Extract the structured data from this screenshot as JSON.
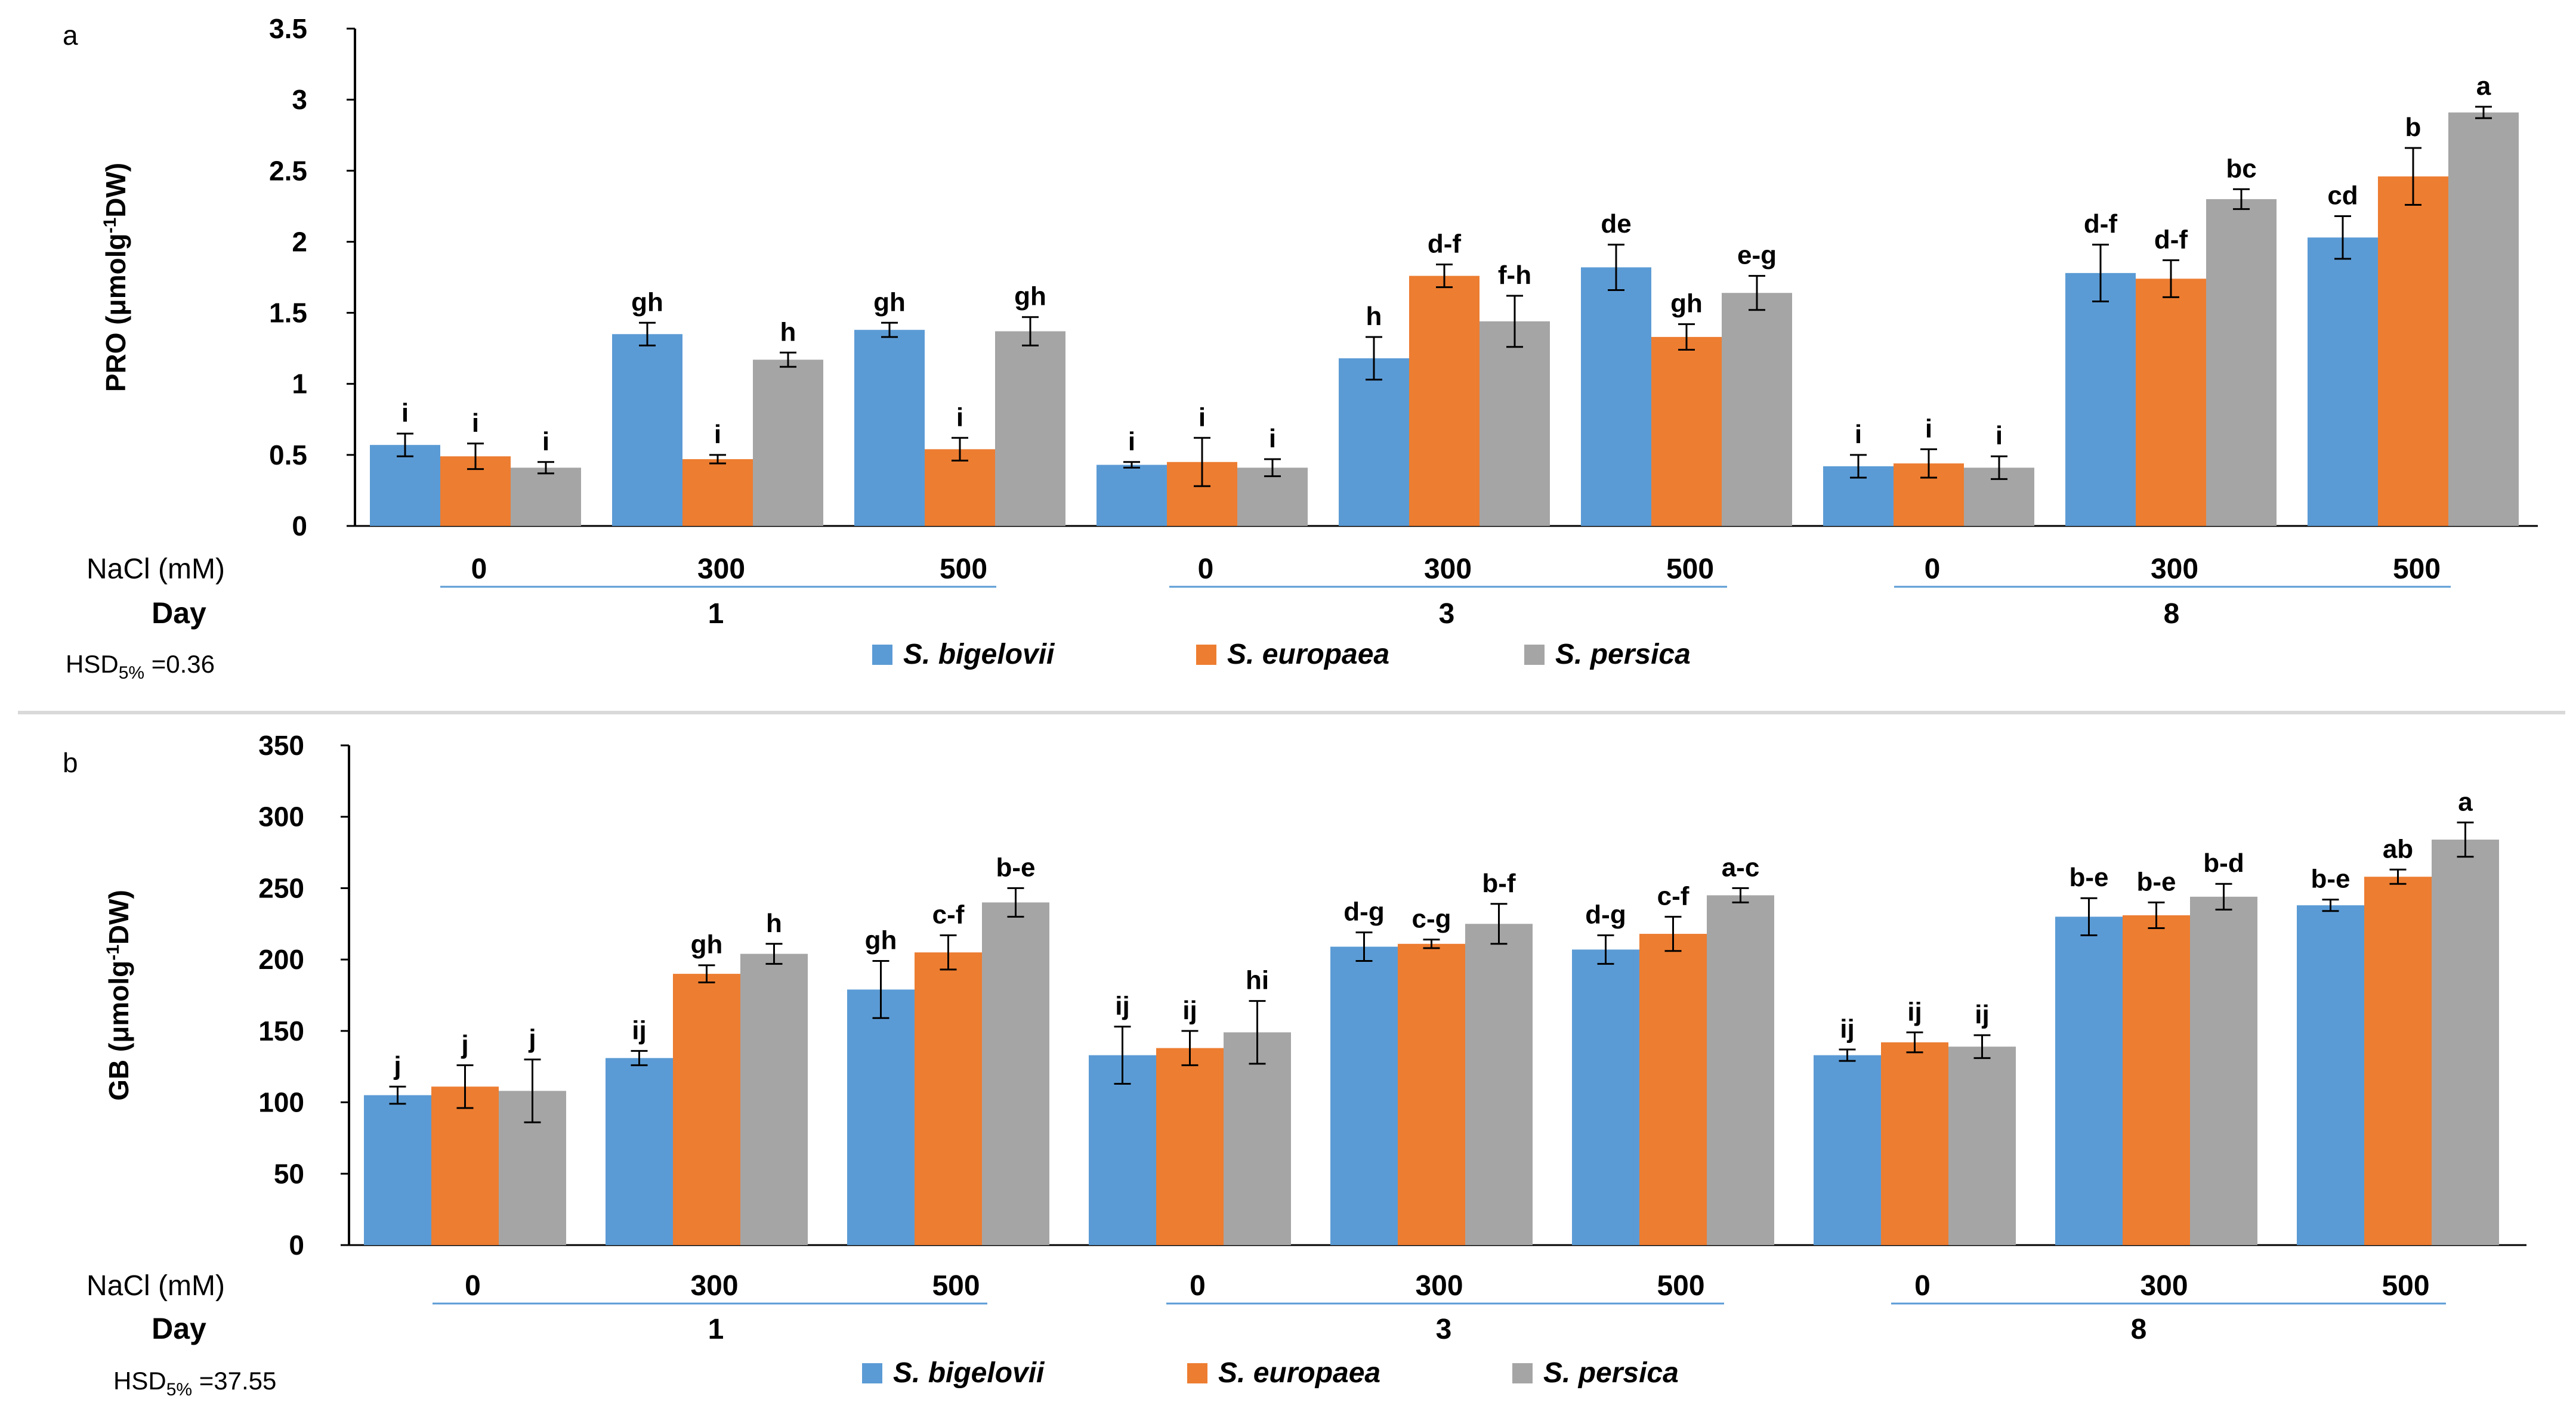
{
  "colors": {
    "s_bigelovii": "#5B9BD5",
    "s_europaea": "#ED7D31",
    "s_persica": "#A5A5A5",
    "group_underline": "#5B9BD5",
    "separator": "#D9D9D9"
  },
  "chart_data": [
    {
      "panel": "a",
      "type": "bar",
      "ylabel_main": "PRO (μmolg",
      "ylabel_sup": "-1",
      "ylabel_end": "DW)",
      "ylim": [
        0,
        3.5
      ],
      "yticks": [
        "0",
        "0.5",
        "1",
        "1.5",
        "2",
        "2.5",
        "3",
        "3.5"
      ],
      "row_label_nacl": "NaCl (mM)",
      "row_label_day": "Day",
      "nacl": [
        "0",
        "300",
        "500",
        "0",
        "300",
        "500",
        "0",
        "300",
        "500"
      ],
      "days": [
        "1",
        "3",
        "8"
      ],
      "hsd_prefix": "HSD",
      "hsd_sub": "5%",
      "hsd_value": " =0.36",
      "legend": [
        "S. bigelovii",
        "S. europaea",
        "S. persica"
      ],
      "series": [
        {
          "name": "S. bigelovii",
          "values": [
            0.57,
            1.35,
            1.38,
            0.43,
            1.18,
            1.82,
            0.42,
            1.78,
            2.03
          ],
          "errors": [
            0.08,
            0.08,
            0.05,
            0.02,
            0.15,
            0.16,
            0.08,
            0.2,
            0.15
          ],
          "labels": [
            "i",
            "gh",
            "gh",
            "i",
            "h",
            "de",
            "i",
            "d-f",
            "cd"
          ]
        },
        {
          "name": "S. europaea",
          "values": [
            0.49,
            0.47,
            0.54,
            0.45,
            1.76,
            1.33,
            0.44,
            1.74,
            2.46
          ],
          "errors": [
            0.09,
            0.03,
            0.08,
            0.17,
            0.08,
            0.09,
            0.1,
            0.13,
            0.2
          ],
          "labels": [
            "i",
            "i",
            "i",
            "i",
            "d-f",
            "gh",
            "i",
            "d-f",
            "b"
          ]
        },
        {
          "name": "S. persica",
          "values": [
            0.41,
            1.17,
            1.37,
            0.41,
            1.44,
            1.64,
            0.41,
            2.3,
            2.91
          ],
          "errors": [
            0.04,
            0.05,
            0.1,
            0.06,
            0.18,
            0.12,
            0.08,
            0.07,
            0.04
          ],
          "labels": [
            "i",
            "h",
            "gh",
            "i",
            "f-h",
            "e-g",
            "i",
            "bc",
            "a"
          ]
        }
      ]
    },
    {
      "panel": "b",
      "type": "bar",
      "ylabel_main": "GB (μmolg",
      "ylabel_sup": "-1",
      "ylabel_end": "DW)",
      "ylim": [
        0,
        350
      ],
      "yticks": [
        "0",
        "50",
        "100",
        "150",
        "200",
        "250",
        "300",
        "350"
      ],
      "row_label_nacl": "NaCl (mM)",
      "row_label_day": "Day",
      "nacl": [
        "0",
        "300",
        "500",
        "0",
        "300",
        "500",
        "0",
        "300",
        "500"
      ],
      "days": [
        "1",
        "3",
        "8"
      ],
      "hsd_prefix": "HSD",
      "hsd_sub": "5%",
      "hsd_value": " =37.55",
      "legend": [
        "S. bigelovii",
        "S. europaea",
        "S. persica"
      ],
      "series": [
        {
          "name": "S. bigelovii",
          "values": [
            105,
            131,
            179,
            133,
            209,
            207,
            133,
            230,
            238
          ],
          "errors": [
            6,
            5,
            20,
            20,
            10,
            10,
            4,
            13,
            4
          ],
          "labels": [
            "j",
            "ij",
            "gh",
            "ij",
            "d-g",
            "d-g",
            "ij",
            "b-e",
            "b-e"
          ]
        },
        {
          "name": "S. europaea",
          "values": [
            111,
            190,
            205,
            138,
            211,
            218,
            142,
            231,
            258
          ],
          "errors": [
            15,
            6,
            12,
            12,
            3,
            12,
            7,
            9,
            5
          ],
          "labels": [
            "j",
            "gh",
            "c-f",
            "ij",
            "c-g",
            "c-f",
            "ij",
            "b-e",
            "ab"
          ]
        },
        {
          "name": "S. persica",
          "values": [
            108,
            204,
            240,
            149,
            225,
            245,
            139,
            244,
            284
          ],
          "errors": [
            22,
            7,
            10,
            22,
            14,
            5,
            8,
            9,
            12
          ],
          "labels": [
            "j",
            "h",
            "b-e",
            "hi",
            "b-f",
            "a-c",
            "ij",
            "b-d",
            "a"
          ]
        }
      ]
    }
  ]
}
